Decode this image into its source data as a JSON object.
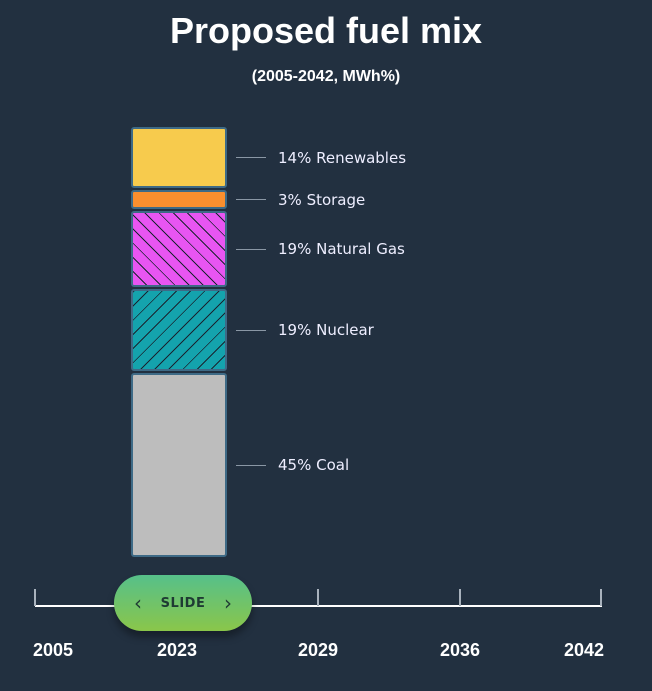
{
  "chart_data": {
    "type": "bar",
    "title": "Proposed fuel mix",
    "subtitle": "(2005-2042, MWh%)",
    "selected_year": "2023",
    "series": [
      {
        "name": "Renewables",
        "value": 14,
        "label": "14% Renewables",
        "color": "#f7cb4d",
        "hatch": false
      },
      {
        "name": "Storage",
        "value": 3,
        "label": "3% Storage",
        "color": "#fa8f2e",
        "hatch": false
      },
      {
        "name": "Natural Gas",
        "value": 19,
        "label": "19% Natural Gas",
        "color": "#e855f2",
        "hatch": true
      },
      {
        "name": "Nuclear",
        "value": 19,
        "label": "19% Nuclear",
        "color": "#14a3ad",
        "hatch": true
      },
      {
        "name": "Coal",
        "value": 45,
        "label": "45% Coal",
        "color": "#bdbdbd",
        "hatch": false
      }
    ],
    "timeline": [
      "2005",
      "2023",
      "2029",
      "2036",
      "2042"
    ]
  },
  "slider": {
    "label": "SLIDE"
  }
}
